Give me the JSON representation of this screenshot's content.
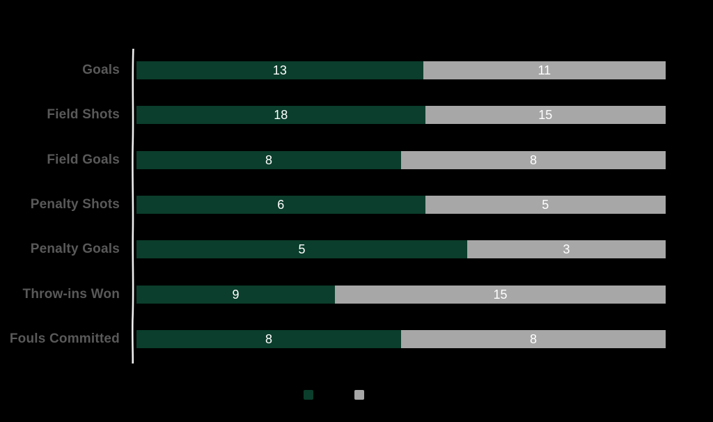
{
  "chart_data": {
    "type": "bar",
    "orientation": "horizontal",
    "stacked": true,
    "stack_mode": "percent-of-row-total",
    "title": "",
    "categories": [
      "Goals",
      "Field Shots",
      "Field Goals",
      "Penalty Shots",
      "Penalty Goals",
      "Throw-ins Won",
      "Fouls Committed"
    ],
    "series": [
      {
        "name": "series-1",
        "label": "",
        "color": "#0b3e2c",
        "values": [
          13,
          18,
          8,
          6,
          5,
          9,
          8
        ]
      },
      {
        "name": "series-2",
        "label": "",
        "color": "#a7a7a7",
        "values": [
          11,
          15,
          8,
          5,
          3,
          15,
          8
        ]
      }
    ],
    "data_labels": "inside-center",
    "legend_position": "bottom-center",
    "legend_text_visible": false,
    "axis": {
      "y_axis_line_visible": true,
      "x_axis_visible": false,
      "gridlines": false,
      "tick_labels": []
    }
  },
  "colors": {
    "background": "#000000",
    "series_1": "#0b3e2c",
    "series_2": "#a7a7a7",
    "category_label": "#595959",
    "data_label": "#ffffff",
    "axis_line": "#f0f0f0"
  }
}
